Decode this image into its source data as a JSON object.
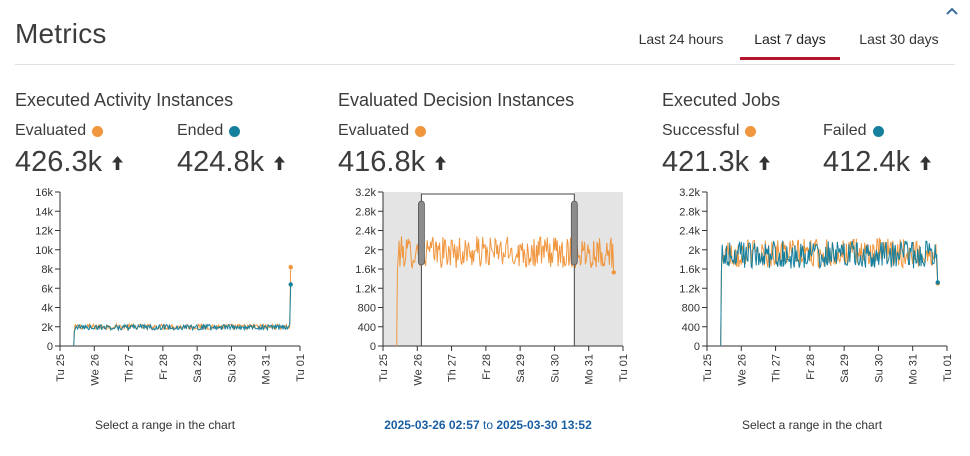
{
  "header": {
    "title": "Metrics",
    "tabs": [
      {
        "label": "Last 24 hours",
        "active": false
      },
      {
        "label": "Last 7 days",
        "active": true
      },
      {
        "label": "Last 30 days",
        "active": false
      }
    ]
  },
  "colors": {
    "series_a": "#f0963e",
    "series_b": "#15809e",
    "active_tab": "#b5152b",
    "range_text": "#1a5fa3"
  },
  "panels": [
    {
      "title": "Executed Activity Instances",
      "metrics": [
        {
          "label": "Evaluated",
          "value": "426.3k",
          "color": "#f0963e",
          "trend": "up"
        },
        {
          "label": "Ended",
          "value": "424.8k",
          "color": "#15809e",
          "trend": "up"
        }
      ],
      "caption": "Select a range in the chart"
    },
    {
      "title": "Evaluated Decision Instances",
      "metrics": [
        {
          "label": "Evaluated",
          "value": "416.8k",
          "color": "#f0963e",
          "trend": "up"
        }
      ],
      "selected_range": {
        "start": "2025-03-26 02:57",
        "separator": "to",
        "end": "2025-03-30 13:52"
      }
    },
    {
      "title": "Executed Jobs",
      "metrics": [
        {
          "label": "Successful",
          "value": "421.3k",
          "color": "#f0963e",
          "trend": "up"
        },
        {
          "label": "Failed",
          "value": "412.4k",
          "color": "#15809e",
          "trend": "up"
        }
      ],
      "caption": "Select a range in the chart"
    }
  ],
  "chart_data": [
    {
      "type": "line",
      "x_ticks": [
        "Tu 25",
        "We 26",
        "Th 27",
        "Fr 28",
        "Sa 29",
        "Su 30",
        "Mo 31",
        "Tu 01"
      ],
      "y_ticks": [
        "0",
        "2k",
        "4k",
        "6k",
        "8k",
        "10k",
        "12k",
        "14k",
        "16k"
      ],
      "ylim": [
        0,
        16000
      ],
      "x_range_days": [
        0,
        7
      ],
      "series": [
        {
          "name": "Evaluated",
          "color": "#f0963e",
          "start_day": 0.42,
          "end_day": 6.7,
          "base": 2000,
          "jitter": 280,
          "end_value": 8200
        },
        {
          "name": "Ended",
          "color": "#15809e",
          "start_day": 0.42,
          "end_day": 6.7,
          "base": 1950,
          "jitter": 280,
          "end_value": 6400
        }
      ]
    },
    {
      "type": "line",
      "x_ticks": [
        "Tu 25",
        "We 26",
        "Th 27",
        "Fr 28",
        "Sa 29",
        "Su 30",
        "Mo 31",
        "Tu 01"
      ],
      "y_ticks": [
        "0",
        "400",
        "800",
        "1.2k",
        "1.6k",
        "2k",
        "2.4k",
        "2.8k",
        "3.2k"
      ],
      "ylim": [
        0,
        3200
      ],
      "x_range_days": [
        0,
        7
      ],
      "selection_days": [
        1.12,
        5.58
      ],
      "series": [
        {
          "name": "Evaluated",
          "color": "#f0963e",
          "start_day": 0.42,
          "end_day": 6.7,
          "base": 1950,
          "jitter": 330,
          "end_value": 1530
        }
      ]
    },
    {
      "type": "line",
      "x_ticks": [
        "Tu 25",
        "We 26",
        "Th 27",
        "Fr 28",
        "Sa 29",
        "Su 30",
        "Mo 31",
        "Tu 01"
      ],
      "y_ticks": [
        "0",
        "400",
        "800",
        "1.2k",
        "1.6k",
        "2k",
        "2.4k",
        "2.8k",
        "3.2k"
      ],
      "ylim": [
        0,
        3200
      ],
      "x_range_days": [
        0,
        7
      ],
      "series": [
        {
          "name": "Successful",
          "color": "#f0963e",
          "start_day": 0.42,
          "end_day": 6.7,
          "base": 1930,
          "jitter": 300,
          "end_value": 1300
        },
        {
          "name": "Failed",
          "color": "#15809e",
          "start_day": 0.42,
          "end_day": 6.7,
          "base": 1900,
          "jitter": 290,
          "end_value": 1320
        }
      ]
    }
  ]
}
